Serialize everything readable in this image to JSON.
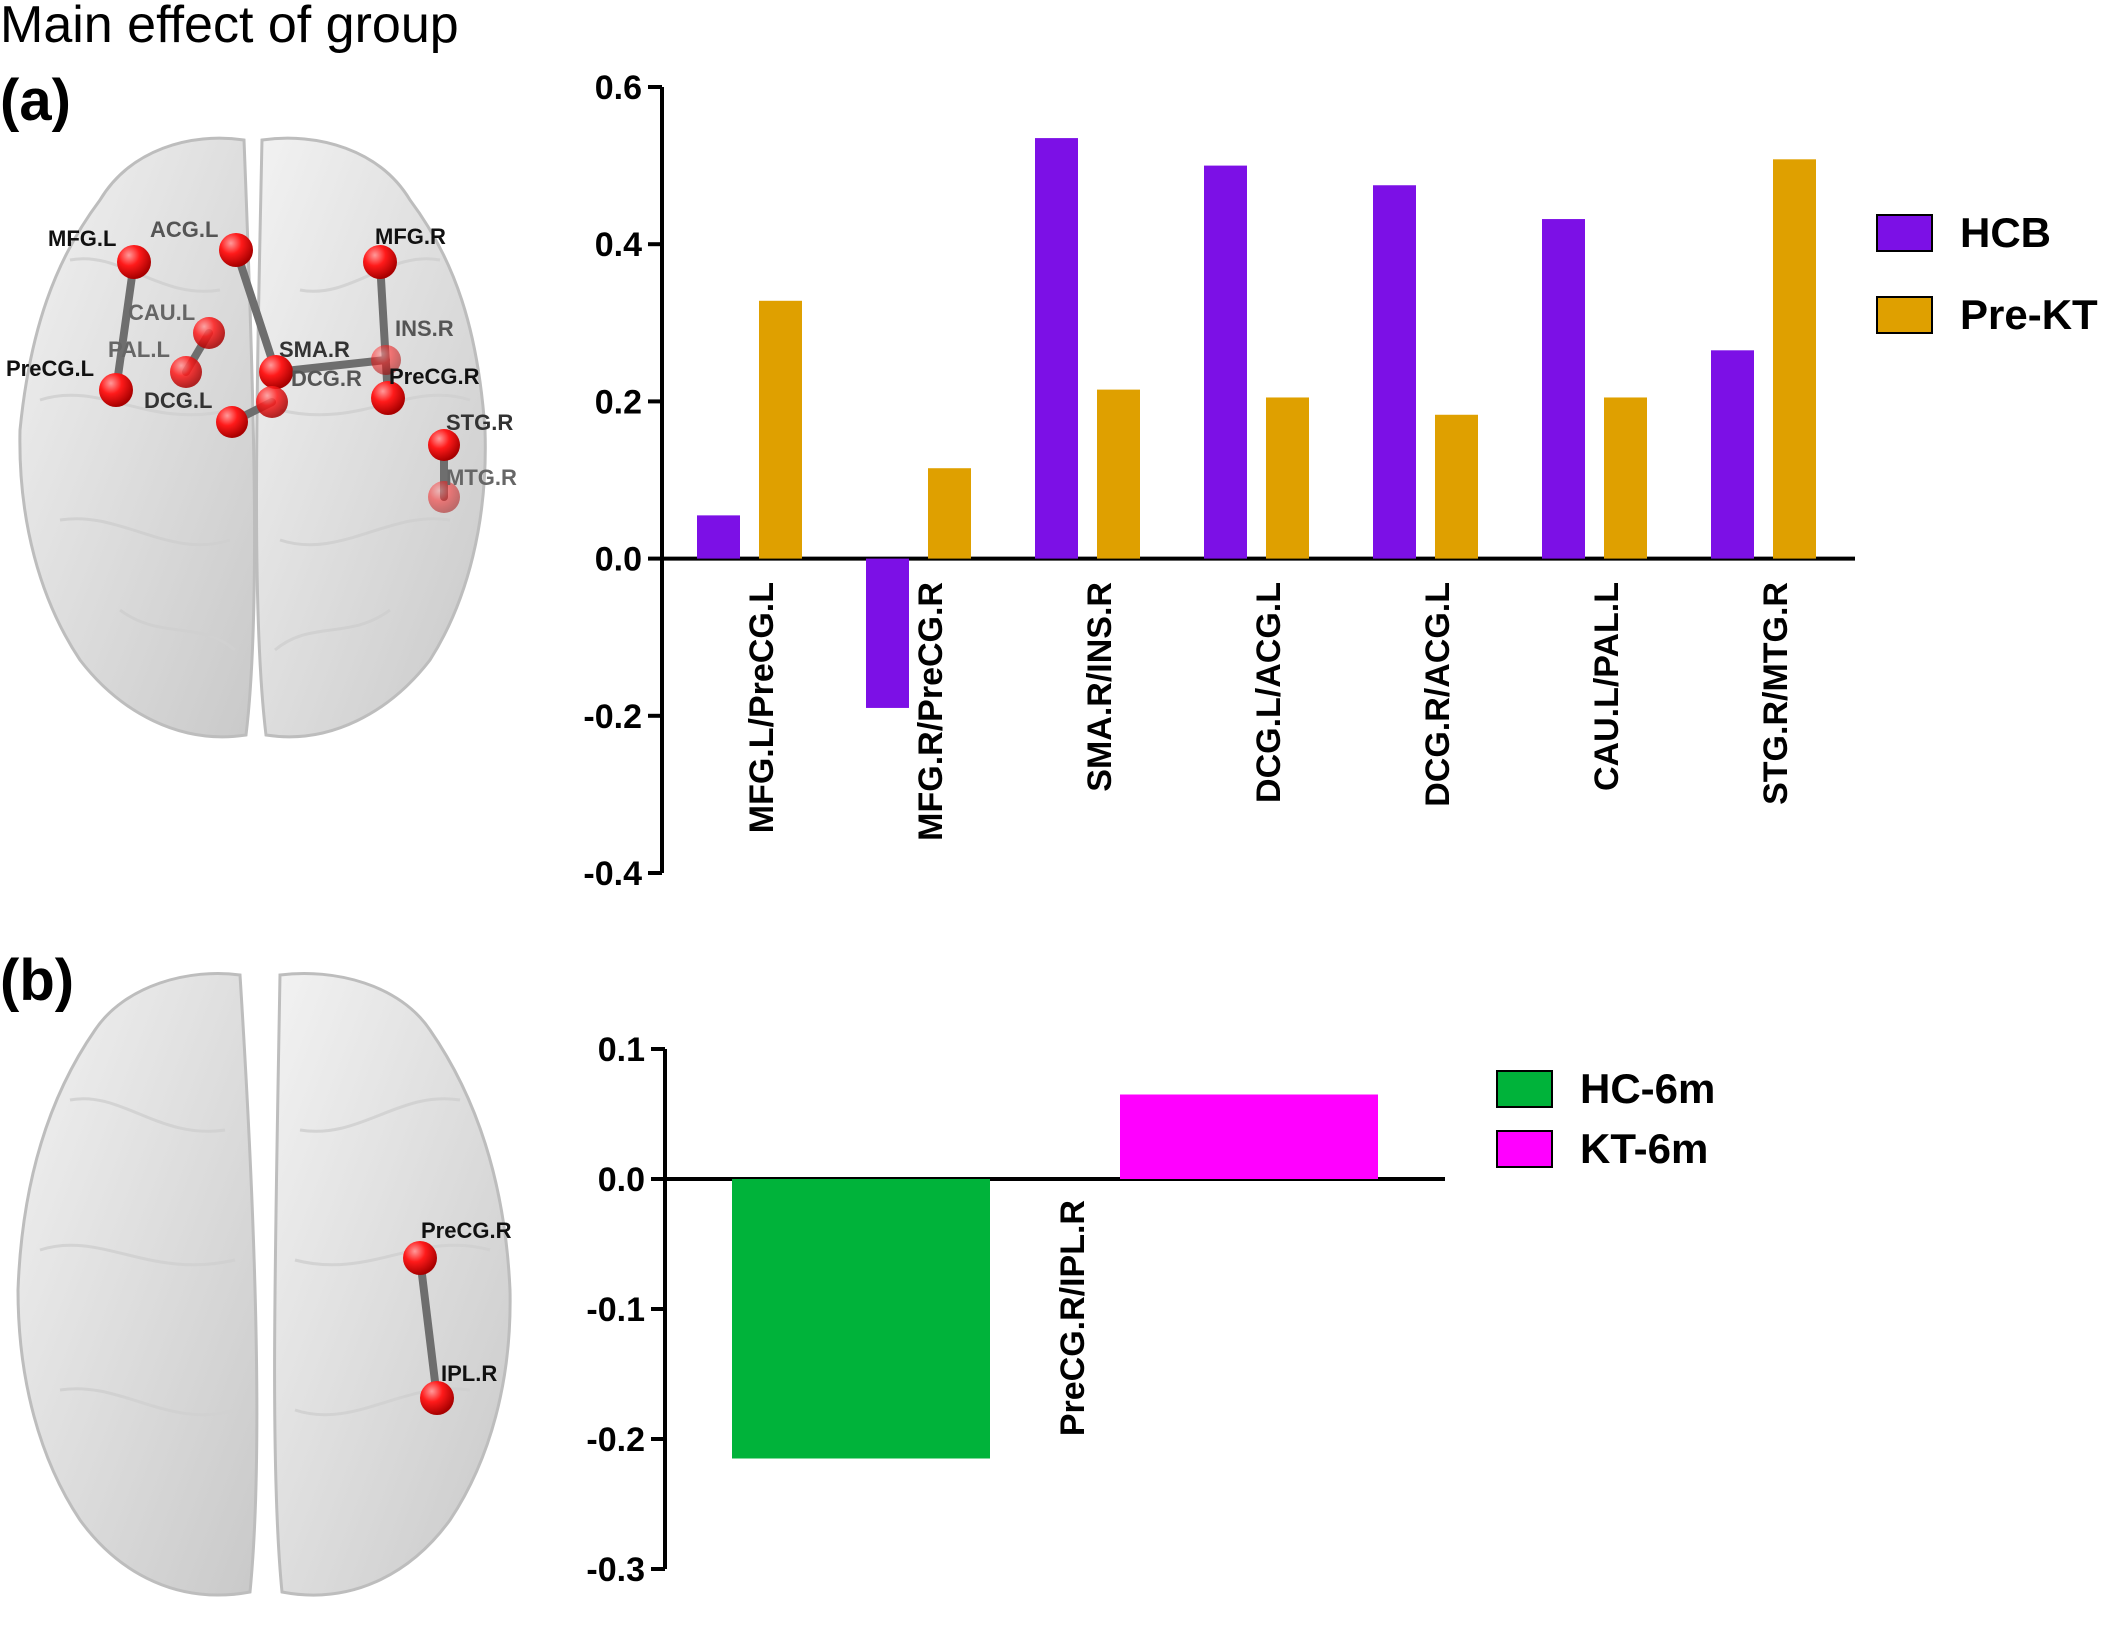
{
  "figure_title": "Main effect of group",
  "panel_a": {
    "label": "(a)",
    "brain_labels": [
      "MFG.L",
      "ACG.L",
      "MFG.R",
      "CAU.L",
      "PAL.L",
      "PreCG.L",
      "SMA.R",
      "INS.R",
      "DCG.R",
      "PreCG.R",
      "DCG.L",
      "STG.R",
      "MTG.R"
    ]
  },
  "panel_b": {
    "label": "(b)",
    "brain_labels": [
      "PreCG.R",
      "IPL.R"
    ]
  },
  "colors": {
    "hcb": "#7c10e6",
    "prekt": "#dfa000",
    "hc6m": "#00b33a",
    "kt6m": "#ff00ff",
    "node": "#e80000",
    "edge": "#6e6e6e"
  },
  "chart_data": [
    {
      "type": "bar",
      "categories": [
        "MFG.L/PreCG.L",
        "MFG.R/PreCG.R",
        "SMA.R/INS.R",
        "DCG.L/ACG.L",
        "DCG.R/ACG.L",
        "CAU.L/PAL.L",
        "STG.R/MTG.R"
      ],
      "series": [
        {
          "name": "HCB",
          "values": [
            0.055,
            -0.19,
            0.535,
            0.5,
            0.475,
            0.432,
            0.265
          ]
        },
        {
          "name": "Pre-KT",
          "values": [
            0.328,
            0.115,
            0.215,
            0.205,
            0.183,
            0.205,
            0.508
          ]
        }
      ],
      "ylim": [
        -0.4,
        0.6
      ],
      "yticks": [
        -0.4,
        -0.2,
        0.0,
        0.2,
        0.4,
        0.6
      ],
      "ytick_labels": [
        "-0.4",
        "-0.2",
        "0.0",
        "0.2",
        "0.4",
        "0.6"
      ],
      "legend": "right"
    },
    {
      "type": "bar",
      "categories": [
        "PreCG.R/IPL.R"
      ],
      "series": [
        {
          "name": "HC-6m",
          "values": [
            -0.215
          ]
        },
        {
          "name": "KT-6m",
          "values": [
            0.065
          ]
        }
      ],
      "ylim": [
        -0.3,
        0.1
      ],
      "yticks": [
        -0.3,
        -0.2,
        -0.1,
        0.0,
        0.1
      ],
      "ytick_labels": [
        "-0.3",
        "-0.2",
        "-0.1",
        "0.0",
        "0.1"
      ],
      "legend": "right"
    }
  ]
}
